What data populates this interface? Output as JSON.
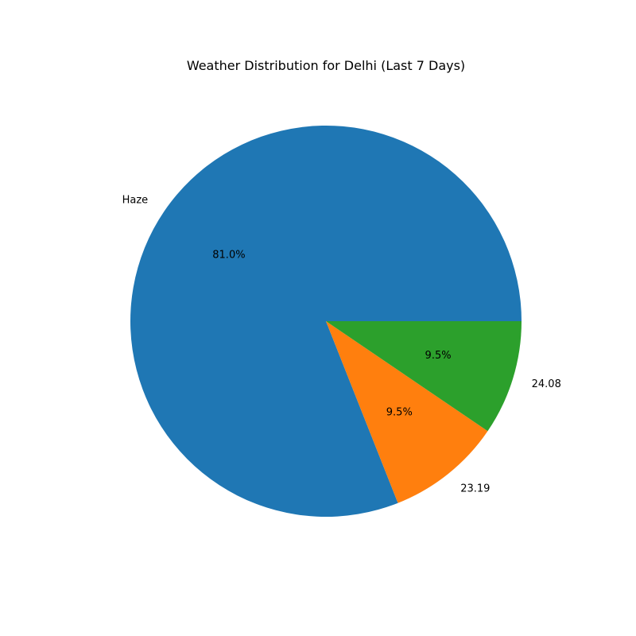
{
  "chart_data": {
    "type": "pie",
    "title": "Weather Distribution for Delhi (Last 7 Days)",
    "slices": [
      {
        "label": "Haze",
        "value": 81.0,
        "pct_label": "81.0%",
        "color": "#1f77b4"
      },
      {
        "label": "23.19",
        "value": 9.5,
        "pct_label": "9.5%",
        "color": "#ff7f0e"
      },
      {
        "label": "24.08",
        "value": 9.5,
        "pct_label": "9.5%",
        "color": "#2ca02c"
      }
    ],
    "start_angle_deg": 0,
    "direction": "counterclockwise",
    "legend": "none"
  }
}
